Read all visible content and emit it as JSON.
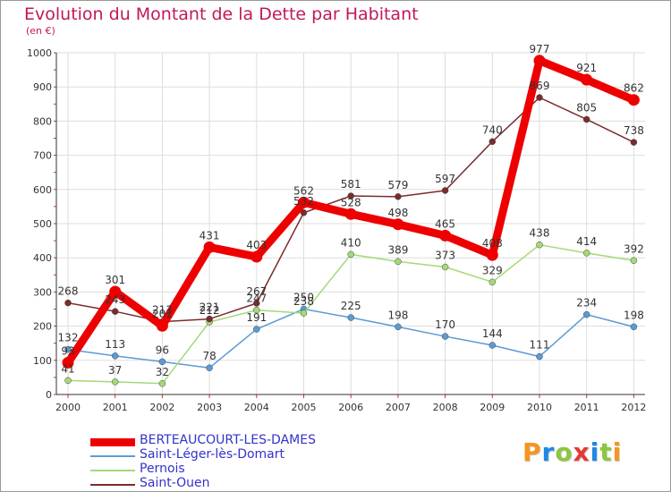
{
  "title": "Evolution du Montant de la Dette par Habitant",
  "subtitle": "(en €)",
  "logo": {
    "text": "Proxiti",
    "letter_colors": [
      "#f7941d",
      "#1e88e5",
      "#8dc63f",
      "#e53935",
      "#1e88e5",
      "#8dc63f",
      "#f7941d"
    ]
  },
  "chart_data": {
    "type": "line",
    "categories": [
      "2000",
      "2001",
      "2002",
      "2003",
      "2004",
      "2005",
      "2006",
      "2007",
      "2008",
      "2009",
      "2010",
      "2011",
      "2012"
    ],
    "ylim": [
      0,
      1000
    ],
    "yticks": [
      "0",
      "100",
      "200",
      "300",
      "400",
      "500",
      "600",
      "700",
      "800",
      "900",
      "1000"
    ],
    "grid": true,
    "legend_position": "bottom-left",
    "series": [
      {
        "name": "BERTEAUCOURT-LES-DAMES",
        "color": "#ee0000",
        "values": [
          93,
          301,
          201,
          431,
          403,
          562,
          528,
          498,
          465,
          408,
          977,
          921,
          862
        ],
        "labels": [
          "93",
          "301",
          "201",
          "431",
          "403",
          "562",
          "528",
          "498",
          "465",
          "408",
          "977",
          "921",
          "862"
        ]
      },
      {
        "name": "Saint-Léger-lès-Domart",
        "color": "#5b9bd5",
        "values": [
          132,
          113,
          96,
          78,
          191,
          250,
          225,
          198,
          170,
          144,
          111,
          234,
          198
        ],
        "labels": [
          "132",
          "113",
          "96",
          "78",
          "191",
          "250",
          "225",
          "198",
          "170",
          "144",
          "111",
          "234",
          "198"
        ]
      },
      {
        "name": "Pernois",
        "color": "#a3d977",
        "values": [
          41,
          37,
          32,
          212,
          247,
          238,
          410,
          389,
          373,
          329,
          438,
          414,
          392
        ],
        "labels": [
          "41",
          "37",
          "32",
          "212",
          "247",
          "238",
          "410",
          "389",
          "373",
          "329",
          "438",
          "414",
          "392"
        ]
      },
      {
        "name": "Saint-Ouen",
        "color": "#7b2c2c",
        "values": [
          268,
          243,
          213,
          221,
          267,
          532,
          581,
          579,
          597,
          740,
          869,
          805,
          738
        ],
        "labels": [
          "268",
          "243",
          "213",
          "221",
          "267",
          "532",
          "581",
          "579",
          "597",
          "740",
          "869",
          "805",
          "738"
        ]
      }
    ]
  }
}
